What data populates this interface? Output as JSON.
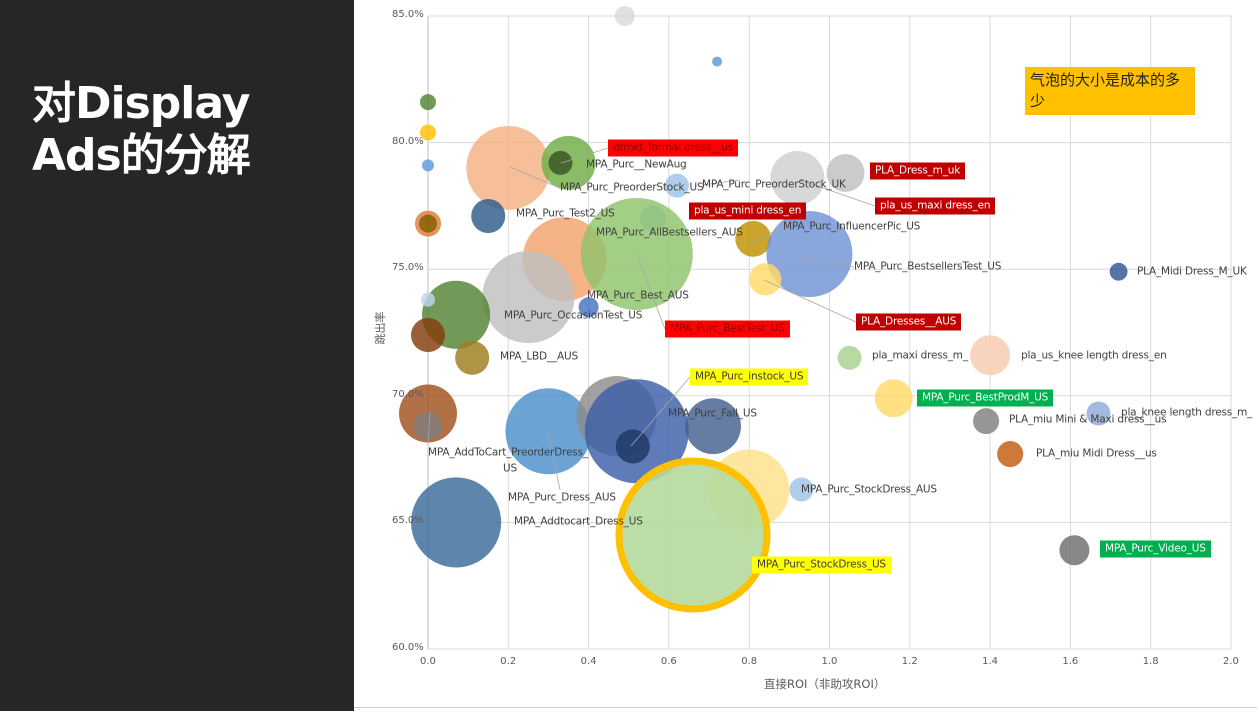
{
  "slide": {
    "title": "对Display Ads的分解"
  },
  "chart_data": {
    "type": "scatter",
    "subtype": "bubble",
    "xlabel": "直接ROI（非助攻ROI）",
    "ylabel": "跳出率",
    "xlim": [
      0,
      2.0
    ],
    "ylim": [
      60,
      85
    ],
    "x_ticks": [
      "0.0",
      "0.2",
      "0.4",
      "0.6",
      "0.8",
      "1.0",
      "1.2",
      "1.4",
      "1.6",
      "1.8",
      "2.0"
    ],
    "y_ticks": [
      "60.0%",
      "65.0%",
      "70.0%",
      "75.0%",
      "80.0%",
      "85.0%"
    ],
    "grid": true,
    "annotation": "气泡的大小是成本的多少",
    "bubbles": [
      {
        "x": 0.49,
        "y": 85.0,
        "size": 1.0,
        "color": "#d9d9d9"
      },
      {
        "x": 0.72,
        "y": 83.2,
        "size": 0.25,
        "color": "#5b9bd5"
      },
      {
        "x": 0.0,
        "y": 81.6,
        "size": 0.64,
        "color": "#548235"
      },
      {
        "x": 0.0,
        "y": 80.4,
        "size": 0.64,
        "color": "#ffc000"
      },
      {
        "x": 0.0,
        "y": 79.1,
        "size": 0.36,
        "color": "#5b9bd5"
      },
      {
        "x": 0.2,
        "y": 79.0,
        "size": 17.6,
        "color": "#f4b183"
      },
      {
        "x": 0.35,
        "y": 79.2,
        "size": 7.3,
        "color": "#70ad47"
      },
      {
        "x": 0.33,
        "y": 79.2,
        "size": 1.44,
        "color": "#375623"
      },
      {
        "x": 0.62,
        "y": 78.3,
        "size": 1.44,
        "color": "#9dc3e6"
      },
      {
        "x": 0.92,
        "y": 78.6,
        "size": 7.3,
        "color": "#d0d0d0"
      },
      {
        "x": 1.04,
        "y": 78.8,
        "size": 3.6,
        "color": "#bfbfbf"
      },
      {
        "x": 0.15,
        "y": 77.1,
        "size": 2.9,
        "color": "#2e5c8a"
      },
      {
        "x": 0.0,
        "y": 76.8,
        "size": 1.7,
        "color": "#e07b39"
      },
      {
        "x": 0.0,
        "y": 76.8,
        "size": 0.8,
        "color": "#7f6000"
      },
      {
        "x": 0.56,
        "y": 77.0,
        "size": 1.7,
        "color": "#9dc3e6"
      },
      {
        "x": 0.34,
        "y": 75.4,
        "size": 17.6,
        "color": "#f4a26c"
      },
      {
        "x": 0.52,
        "y": 75.6,
        "size": 31.4,
        "color": "#8fc36b"
      },
      {
        "x": 0.81,
        "y": 76.2,
        "size": 3.2,
        "color": "#bf9000"
      },
      {
        "x": 0.95,
        "y": 75.6,
        "size": 18.5,
        "color": "#6f93d6"
      },
      {
        "x": 0.84,
        "y": 74.6,
        "size": 2.6,
        "color": "#ffd966"
      },
      {
        "x": 0.25,
        "y": 73.9,
        "size": 21.2,
        "color": "#bfbfbf"
      },
      {
        "x": 0.4,
        "y": 73.5,
        "size": 1.0,
        "color": "#4472c4"
      },
      {
        "x": 0.07,
        "y": 73.2,
        "size": 11.6,
        "color": "#548235"
      },
      {
        "x": 0.0,
        "y": 73.8,
        "size": 0.5,
        "color": "#bdd7ee"
      },
      {
        "x": 0.0,
        "y": 72.4,
        "size": 2.9,
        "color": "#843c0c"
      },
      {
        "x": 0.11,
        "y": 71.5,
        "size": 2.9,
        "color": "#9c7c1c"
      },
      {
        "x": 1.05,
        "y": 71.5,
        "size": 1.44,
        "color": "#a9d18e"
      },
      {
        "x": 1.4,
        "y": 71.6,
        "size": 4.0,
        "color": "#f8cbad"
      },
      {
        "x": 1.16,
        "y": 69.9,
        "size": 3.6,
        "color": "#ffd966"
      },
      {
        "x": 0.0,
        "y": 69.3,
        "size": 8.4,
        "color": "#a0501c"
      },
      {
        "x": 0.0,
        "y": 68.8,
        "size": 2.0,
        "color": "#7f7f7f"
      },
      {
        "x": 0.3,
        "y": 68.6,
        "size": 18.5,
        "color": "#4a8fcc"
      },
      {
        "x": 0.47,
        "y": 69.2,
        "size": 16.0,
        "color": "#8c8c8c"
      },
      {
        "x": 0.52,
        "y": 68.6,
        "size": 27.0,
        "color": "#3d5fa8"
      },
      {
        "x": 0.51,
        "y": 68.0,
        "size": 2.9,
        "color": "#1f3864"
      },
      {
        "x": 0.71,
        "y": 68.8,
        "size": 7.8,
        "color": "#44608f"
      },
      {
        "x": 1.39,
        "y": 69.0,
        "size": 1.7,
        "color": "#7f7f7f"
      },
      {
        "x": 1.67,
        "y": 69.3,
        "size": 1.44,
        "color": "#8faadc"
      },
      {
        "x": 1.45,
        "y": 67.7,
        "size": 1.7,
        "color": "#c55a11"
      },
      {
        "x": 0.8,
        "y": 66.3,
        "size": 16.0,
        "color": "#ffe08a"
      },
      {
        "x": 0.93,
        "y": 66.3,
        "size": 1.44,
        "color": "#9dc3e6"
      },
      {
        "x": 0.07,
        "y": 65.0,
        "size": 20.3,
        "color": "#3b6a9a"
      },
      {
        "x": 0.66,
        "y": 64.5,
        "size": 54.8,
        "color": "#b5d99c",
        "highlight": "#ffc000"
      },
      {
        "x": 1.61,
        "y": 63.9,
        "size": 2.25,
        "color": "#6e6e6e"
      },
      {
        "x": 1.72,
        "y": 74.9,
        "size": 0.8,
        "color": "#2f5597"
      }
    ],
    "labels": [
      {
        "text": "drmkt_formal dress__us",
        "style": "brightred"
      },
      {
        "text": "MPA_Purc__NewAug",
        "style": "plain"
      },
      {
        "text": "MPA_Purc_PreorderStock_US",
        "style": "plain"
      },
      {
        "text": "MPA_Purc_PreorderStock_UK",
        "style": "plain"
      },
      {
        "text": "PLA_Dress_m_uk",
        "style": "red"
      },
      {
        "text": "pla_us_maxi dress_en",
        "style": "red"
      },
      {
        "text": "MPA_Purc_Test2_US",
        "style": "plain"
      },
      {
        "text": "pla_us_mini dress_en",
        "style": "red"
      },
      {
        "text": "MPA_Purc_AllBestsellers_AUS",
        "style": "plain"
      },
      {
        "text": "MPA_Purc_InfluencerPic_US",
        "style": "plain"
      },
      {
        "text": "MPA_Purc_BestsellersTest_US",
        "style": "plain"
      },
      {
        "text": "PLA_Midi Dress_M_UK",
        "style": "plain"
      },
      {
        "text": "MPA_Purc_Best_AUS",
        "style": "plain"
      },
      {
        "text": "PLA_Dresses__AUS",
        "style": "red"
      },
      {
        "text": "MPA_Purc_OccasionTest_US",
        "style": "plain"
      },
      {
        "text": "MPA_Purc_BestTest_US",
        "style": "brightred"
      },
      {
        "text": "MPA_LBD__AUS",
        "style": "plain"
      },
      {
        "text": "pla_maxi dress_m_",
        "style": "plain"
      },
      {
        "text": "pla_us_knee length dress_en",
        "style": "plain"
      },
      {
        "text": "MPA_Purc_instock_US",
        "style": "yellow"
      },
      {
        "text": "MPA_Purc_BestProdM_US",
        "style": "green"
      },
      {
        "text": "MPA_Purc_Fall_US",
        "style": "plain"
      },
      {
        "text": "PLA_miu Mini & Maxi dress__us",
        "style": "plain"
      },
      {
        "text": "pla_knee length dress_m_",
        "style": "plain"
      },
      {
        "text": "MPA_AddToCart_PreorderDress_",
        "style": "plain"
      },
      {
        "text": "US",
        "style": "plain"
      },
      {
        "text": "PLA_miu Midi Dress__us",
        "style": "plain"
      },
      {
        "text": "MPA_Purc_StockDress_AUS",
        "style": "plain"
      },
      {
        "text": "MPA_Purc_Dress_AUS",
        "style": "plain"
      },
      {
        "text": "MPA_Addtocart_Dress_US",
        "style": "plain"
      },
      {
        "text": "MPA_Purc_Video_US",
        "style": "green"
      },
      {
        "text": "MPA_Purc_StockDress_US",
        "style": "yellow"
      }
    ]
  }
}
